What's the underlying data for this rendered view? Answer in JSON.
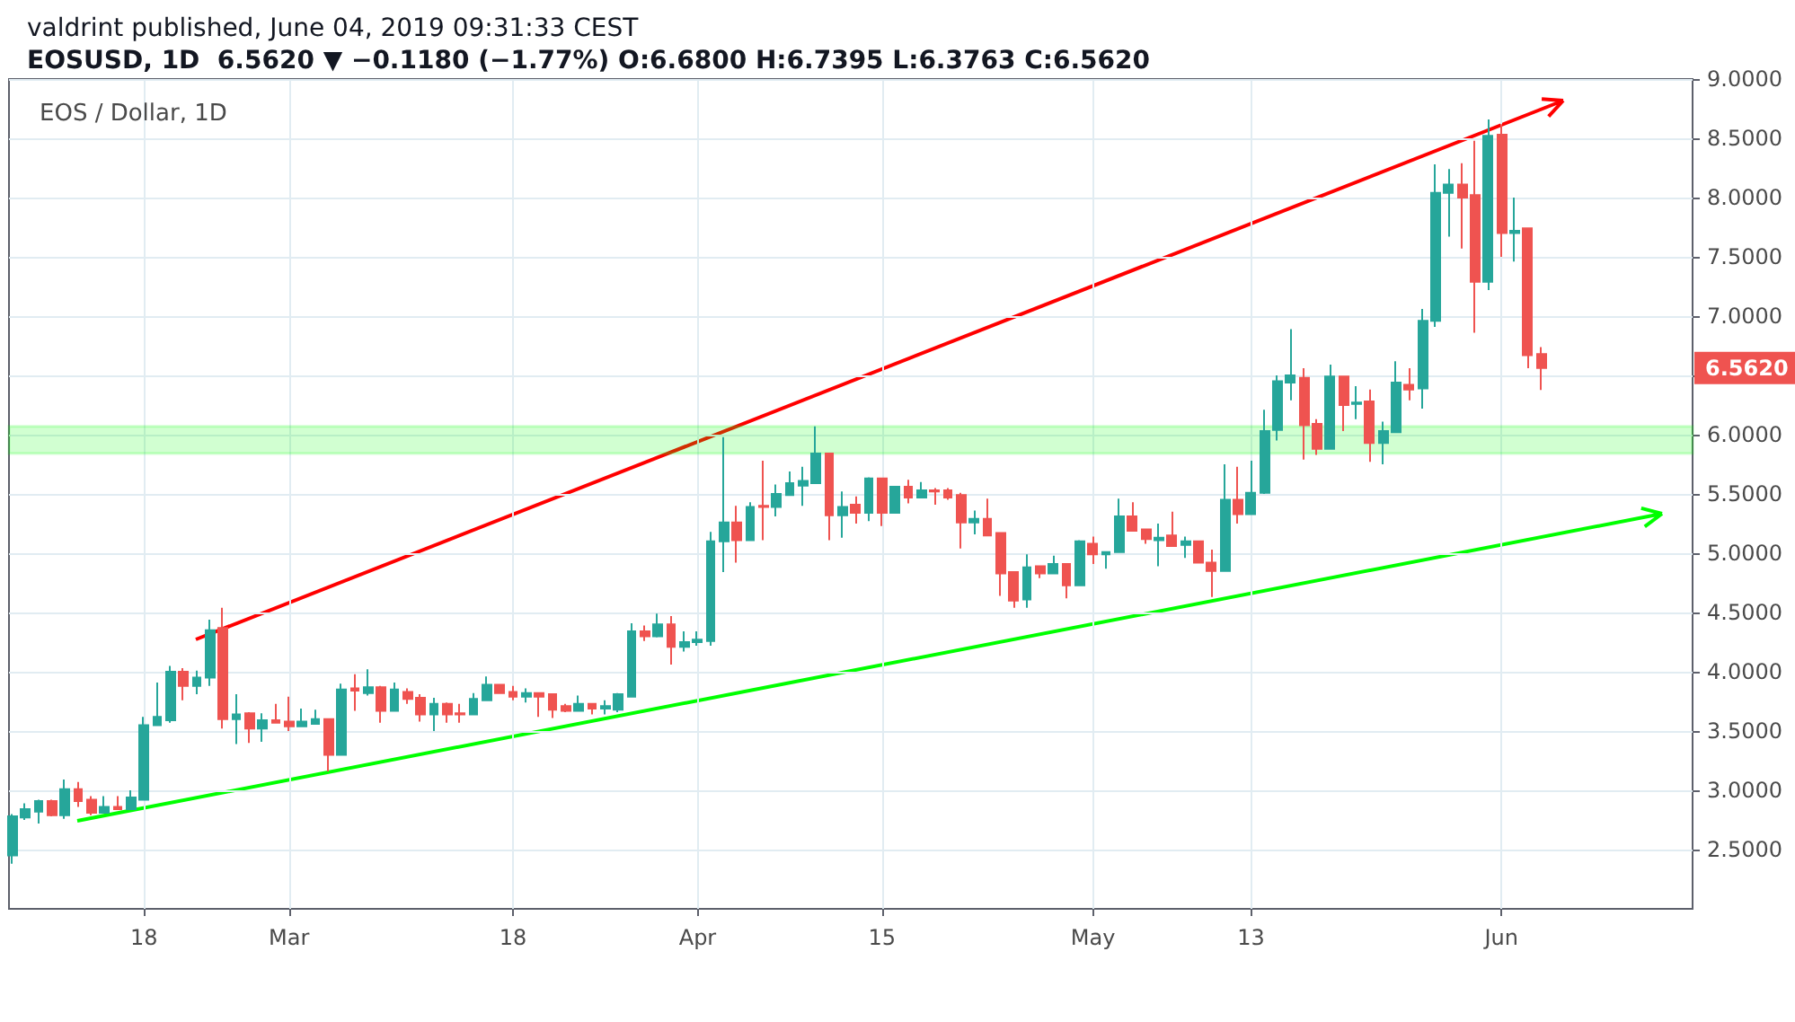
{
  "chart_data": {
    "type": "candlestick",
    "title": "EOS / Dollar, 1D",
    "subtitle": "EOSUSD, 1D  6.5620 ▼ −0.1180 (−1.77%) O:6.6800 H:6.7395 L:6.3763 C:6.5620",
    "annotations": [
      "valdrint published, June 04, 2019 09:31:33 CEST",
      "6.5620"
    ],
    "x": [
      "2019-02-08",
      "2019-02-09",
      "2019-02-10",
      "2019-02-11",
      "2019-02-12",
      "2019-02-13",
      "2019-02-14",
      "2019-02-15",
      "2019-02-16",
      "2019-02-17",
      "2019-02-18",
      "2019-02-19",
      "2019-02-20",
      "2019-02-21",
      "2019-02-22",
      "2019-02-23",
      "2019-02-24",
      "2019-02-25",
      "2019-02-26",
      "2019-02-27",
      "2019-02-28",
      "2019-03-01",
      "2019-03-02",
      "2019-03-03",
      "2019-03-04",
      "2019-03-05",
      "2019-03-06",
      "2019-03-07",
      "2019-03-08",
      "2019-03-09",
      "2019-03-10",
      "2019-03-11",
      "2019-03-12",
      "2019-03-13",
      "2019-03-14",
      "2019-03-15",
      "2019-03-16",
      "2019-03-17",
      "2019-03-18",
      "2019-03-19",
      "2019-03-20",
      "2019-03-21",
      "2019-03-22",
      "2019-03-23",
      "2019-03-24",
      "2019-03-25",
      "2019-03-26",
      "2019-03-27",
      "2019-03-28",
      "2019-03-29",
      "2019-03-30",
      "2019-03-31",
      "2019-04-01",
      "2019-04-02",
      "2019-04-03",
      "2019-04-04",
      "2019-04-05",
      "2019-04-06",
      "2019-04-07",
      "2019-04-08",
      "2019-04-09",
      "2019-04-10",
      "2019-04-11",
      "2019-04-12",
      "2019-04-13",
      "2019-04-14",
      "2019-04-15",
      "2019-04-16",
      "2019-04-17",
      "2019-04-18",
      "2019-04-19",
      "2019-04-20",
      "2019-04-21",
      "2019-04-22",
      "2019-04-23",
      "2019-04-24",
      "2019-04-25",
      "2019-04-26",
      "2019-04-27",
      "2019-04-28",
      "2019-04-29",
      "2019-04-30",
      "2019-05-01",
      "2019-05-02",
      "2019-05-03",
      "2019-05-04",
      "2019-05-05",
      "2019-05-06",
      "2019-05-07",
      "2019-05-08",
      "2019-05-09",
      "2019-05-10",
      "2019-05-11",
      "2019-05-12",
      "2019-05-13",
      "2019-05-14",
      "2019-05-15",
      "2019-05-16",
      "2019-05-17",
      "2019-05-18",
      "2019-05-19",
      "2019-05-20",
      "2019-05-21",
      "2019-05-22",
      "2019-05-23",
      "2019-05-24",
      "2019-05-25",
      "2019-05-26",
      "2019-05-27",
      "2019-05-28",
      "2019-05-29",
      "2019-05-30",
      "2019-05-31",
      "2019-06-01",
      "2019-06-02",
      "2019-06-03",
      "2019-06-04"
    ],
    "ohlc": [
      [
        2.45,
        2.8,
        2.38,
        2.78
      ],
      [
        2.77,
        2.89,
        2.75,
        2.84
      ],
      [
        2.82,
        2.92,
        2.72,
        2.91
      ],
      [
        2.91,
        2.92,
        2.78,
        2.79
      ],
      [
        2.79,
        3.09,
        2.76,
        3.01
      ],
      [
        3.01,
        3.07,
        2.86,
        2.91
      ],
      [
        2.92,
        2.95,
        2.79,
        2.81
      ],
      [
        2.81,
        2.95,
        2.81,
        2.86
      ],
      [
        2.86,
        2.95,
        2.84,
        2.84
      ],
      [
        2.84,
        3.0,
        2.84,
        2.94
      ],
      [
        2.92,
        3.62,
        2.92,
        3.55
      ],
      [
        3.55,
        3.91,
        3.55,
        3.62
      ],
      [
        3.59,
        4.05,
        3.57,
        4.0
      ],
      [
        4.0,
        4.03,
        3.76,
        3.88
      ],
      [
        3.88,
        4.01,
        3.81,
        3.95
      ],
      [
        3.95,
        4.44,
        3.88,
        4.35
      ],
      [
        4.37,
        4.54,
        3.52,
        3.6
      ],
      [
        3.6,
        3.81,
        3.39,
        3.64
      ],
      [
        3.65,
        3.66,
        3.4,
        3.52
      ],
      [
        3.52,
        3.65,
        3.41,
        3.59
      ],
      [
        3.59,
        3.73,
        3.57,
        3.57
      ],
      [
        3.58,
        3.79,
        3.5,
        3.54
      ],
      [
        3.54,
        3.69,
        3.54,
        3.58
      ],
      [
        3.56,
        3.68,
        3.56,
        3.6
      ],
      [
        3.6,
        3.6,
        3.16,
        3.3
      ],
      [
        3.3,
        3.9,
        3.3,
        3.85
      ],
      [
        3.86,
        3.98,
        3.67,
        3.84
      ],
      [
        3.82,
        4.02,
        3.8,
        3.87
      ],
      [
        3.87,
        3.88,
        3.57,
        3.67
      ],
      [
        3.67,
        3.91,
        3.67,
        3.85
      ],
      [
        3.83,
        3.86,
        3.73,
        3.77
      ],
      [
        3.78,
        3.81,
        3.58,
        3.64
      ],
      [
        3.64,
        3.78,
        3.5,
        3.73
      ],
      [
        3.73,
        3.74,
        3.57,
        3.64
      ],
      [
        3.65,
        3.73,
        3.57,
        3.64
      ],
      [
        3.64,
        3.82,
        3.64,
        3.77
      ],
      [
        3.76,
        3.96,
        3.76,
        3.89
      ],
      [
        3.89,
        3.89,
        3.82,
        3.82
      ],
      [
        3.83,
        3.88,
        3.76,
        3.79
      ],
      [
        3.79,
        3.86,
        3.74,
        3.82
      ],
      [
        3.82,
        3.82,
        3.62,
        3.79
      ],
      [
        3.81,
        3.81,
        3.61,
        3.68
      ],
      [
        3.71,
        3.73,
        3.66,
        3.67
      ],
      [
        3.67,
        3.8,
        3.67,
        3.73
      ],
      [
        3.73,
        3.73,
        3.64,
        3.69
      ],
      [
        3.69,
        3.76,
        3.64,
        3.71
      ],
      [
        3.68,
        3.82,
        3.66,
        3.81
      ],
      [
        3.79,
        4.41,
        3.79,
        4.34
      ],
      [
        4.34,
        4.39,
        4.26,
        4.3
      ],
      [
        4.3,
        4.49,
        4.29,
        4.4
      ],
      [
        4.4,
        4.47,
        4.06,
        4.21
      ],
      [
        4.21,
        4.34,
        4.17,
        4.25
      ],
      [
        4.25,
        4.34,
        4.22,
        4.27
      ],
      [
        4.26,
        5.18,
        4.22,
        5.1
      ],
      [
        5.1,
        5.98,
        4.84,
        5.26
      ],
      [
        5.26,
        5.4,
        4.92,
        5.11
      ],
      [
        5.11,
        5.43,
        5.11,
        5.39
      ],
      [
        5.4,
        5.78,
        5.11,
        5.39
      ],
      [
        5.39,
        5.58,
        5.31,
        5.5
      ],
      [
        5.49,
        5.69,
        5.49,
        5.59
      ],
      [
        5.57,
        5.73,
        5.4,
        5.61
      ],
      [
        5.59,
        6.07,
        5.59,
        5.84
      ],
      [
        5.84,
        5.84,
        5.11,
        5.32
      ],
      [
        5.32,
        5.52,
        5.13,
        5.39
      ],
      [
        5.41,
        5.48,
        5.25,
        5.34
      ],
      [
        5.34,
        5.64,
        5.27,
        5.63
      ],
      [
        5.63,
        5.63,
        5.23,
        5.34
      ],
      [
        5.34,
        5.56,
        5.34,
        5.56
      ],
      [
        5.56,
        5.62,
        5.42,
        5.47
      ],
      [
        5.47,
        5.6,
        5.47,
        5.53
      ],
      [
        5.53,
        5.55,
        5.41,
        5.52
      ],
      [
        5.53,
        5.55,
        5.45,
        5.47
      ],
      [
        5.49,
        5.51,
        5.04,
        5.26
      ],
      [
        5.26,
        5.36,
        5.16,
        5.29
      ],
      [
        5.29,
        5.46,
        5.15,
        5.15
      ],
      [
        5.17,
        5.17,
        4.64,
        4.83
      ],
      [
        4.84,
        4.84,
        4.54,
        4.6
      ],
      [
        4.61,
        4.99,
        4.54,
        4.88
      ],
      [
        4.89,
        4.89,
        4.79,
        4.83
      ],
      [
        4.83,
        4.98,
        4.83,
        4.91
      ],
      [
        4.91,
        4.91,
        4.62,
        4.73
      ],
      [
        4.73,
        5.11,
        4.73,
        5.1
      ],
      [
        5.08,
        5.14,
        4.91,
        4.99
      ],
      [
        4.99,
        5.01,
        4.87,
        5.01
      ],
      [
        5.01,
        5.46,
        5.01,
        5.31
      ],
      [
        5.31,
        5.43,
        5.19,
        5.19
      ],
      [
        5.2,
        5.2,
        5.08,
        5.12
      ],
      [
        5.11,
        5.25,
        4.89,
        5.13
      ],
      [
        5.15,
        5.35,
        5.06,
        5.06
      ],
      [
        5.07,
        5.14,
        4.96,
        5.1
      ],
      [
        5.1,
        5.1,
        4.92,
        4.92
      ],
      [
        4.92,
        5.03,
        4.63,
        4.85
      ],
      [
        4.85,
        5.75,
        4.85,
        5.45
      ],
      [
        5.45,
        5.73,
        5.25,
        5.33
      ],
      [
        5.33,
        5.78,
        5.33,
        5.51
      ],
      [
        5.51,
        6.21,
        5.5,
        6.03
      ],
      [
        6.04,
        6.5,
        5.95,
        6.45
      ],
      [
        6.44,
        6.89,
        6.29,
        6.5
      ],
      [
        6.48,
        6.56,
        5.79,
        6.08
      ],
      [
        6.09,
        6.13,
        5.83,
        5.88
      ],
      [
        5.88,
        6.59,
        5.88,
        6.49
      ],
      [
        6.49,
        6.49,
        6.03,
        6.25
      ],
      [
        6.26,
        6.41,
        6.13,
        6.27
      ],
      [
        6.28,
        6.38,
        5.77,
        5.93
      ],
      [
        5.93,
        6.11,
        5.75,
        6.03
      ],
      [
        6.02,
        6.62,
        6.02,
        6.44
      ],
      [
        6.42,
        6.56,
        6.29,
        6.38
      ],
      [
        6.39,
        7.06,
        6.22,
        6.96
      ],
      [
        6.96,
        8.28,
        6.91,
        8.04
      ],
      [
        8.04,
        8.24,
        7.67,
        8.11
      ],
      [
        8.11,
        8.29,
        7.57,
        8.0
      ],
      [
        8.02,
        8.48,
        6.86,
        7.29
      ],
      [
        7.29,
        8.66,
        7.22,
        8.52
      ],
      [
        8.53,
        8.62,
        7.5,
        7.7
      ],
      [
        7.7,
        8.0,
        7.46,
        7.72
      ],
      [
        7.74,
        7.74,
        6.56,
        6.67
      ],
      [
        6.68,
        6.7395,
        6.3763,
        6.562
      ]
    ],
    "bands": [
      {
        "axis": "y",
        "from": 5.84,
        "to": 6.07,
        "color": "#00ff00"
      }
    ],
    "xlim": [
      "2019-02-07T18:00",
      "2019-06-15T12:00"
    ],
    "xticks": [
      {
        "value": "2019-02-18",
        "label": "18"
      },
      {
        "value": "2019-03-01",
        "label": "Mar"
      },
      {
        "value": "2019-03-18",
        "label": "18"
      },
      {
        "value": "2019-04-01",
        "label": "Apr"
      },
      {
        "value": "2019-04-15",
        "label": "15"
      },
      {
        "value": "2019-05-01",
        "label": "May"
      },
      {
        "value": "2019-05-13",
        "label": "13"
      },
      {
        "value": "2019-06-01",
        "label": "Jun"
      }
    ],
    "ylim": [
      2.0,
      9.0
    ],
    "yticks": [
      {
        "value": 2.5,
        "label": "2.5000"
      },
      {
        "value": 3.0,
        "label": "3.0000"
      },
      {
        "value": 3.5,
        "label": "3.5000"
      },
      {
        "value": 4.0,
        "label": "4.0000"
      },
      {
        "value": 4.5,
        "label": "4.5000"
      },
      {
        "value": 5.0,
        "label": "5.0000"
      },
      {
        "value": 5.5,
        "label": "5.5000"
      },
      {
        "value": 6.0,
        "label": "6.0000"
      },
      {
        "value": 6.5,
        "label": null
      },
      {
        "value": 7.0,
        "label": "7.0000"
      },
      {
        "value": 7.5,
        "label": "7.5000"
      },
      {
        "value": 8.0,
        "label": "8.0000"
      },
      {
        "value": 8.5,
        "label": "8.5000"
      },
      {
        "value": 9.0,
        "label": "9.0000"
      }
    ],
    "grid": true
  }
}
